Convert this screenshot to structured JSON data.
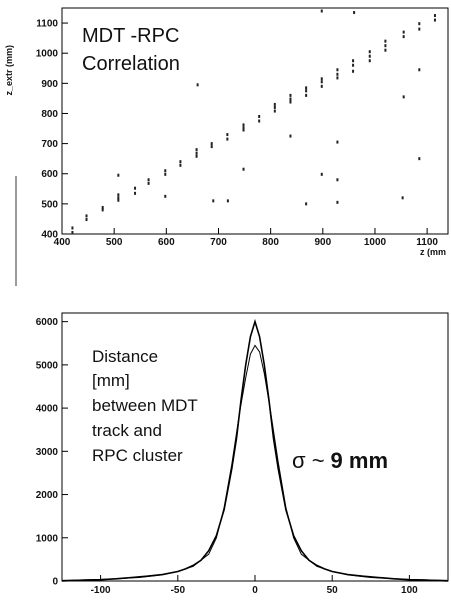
{
  "colors": {
    "ink": "#111111",
    "frame": "#000000",
    "background": "#ffffff",
    "side_bar": "#9a9a9a"
  },
  "chart_data": [
    {
      "type": "scatter",
      "title": "",
      "annotation_lines": [
        "MDT -RPC",
        "Correlation"
      ],
      "xlabel": "z (mm",
      "ylabel": "z_extr (mm)",
      "xlim": [
        400,
        1140
      ],
      "ylim": [
        400,
        1150
      ],
      "xticks": [
        400,
        500,
        600,
        700,
        800,
        900,
        1000,
        1100
      ],
      "yticks": [
        400,
        500,
        600,
        700,
        800,
        900,
        1000,
        1100
      ],
      "x_tick_labels": [
        "400",
        "500",
        "600",
        "700",
        "800",
        "900",
        "1000",
        "1100"
      ],
      "y_tick_labels": [
        "400",
        "500",
        "600",
        "700",
        "800",
        "900",
        "1000",
        "1100"
      ],
      "series": [
        {
          "points": [
            [
              420,
              420
            ],
            [
              420,
              405
            ],
            [
              447,
              448
            ],
            [
              447,
              460
            ],
            [
              478,
              480
            ],
            [
              478,
              488
            ],
            [
              508,
              512
            ],
            [
              508,
              520
            ],
            [
              508,
              530
            ],
            [
              540,
              535
            ],
            [
              540,
              552
            ],
            [
              566,
              568
            ],
            [
              566,
              580
            ],
            [
              598,
              598
            ],
            [
              598,
              610
            ],
            [
              627,
              628
            ],
            [
              627,
              640
            ],
            [
              658,
              658
            ],
            [
              658,
              668
            ],
            [
              658,
              680
            ],
            [
              687,
              690
            ],
            [
              687,
              700
            ],
            [
              717,
              715
            ],
            [
              717,
              730
            ],
            [
              748,
              745
            ],
            [
              748,
              752
            ],
            [
              748,
              762
            ],
            [
              778,
              775
            ],
            [
              778,
              790
            ],
            [
              808,
              808
            ],
            [
              808,
              820
            ],
            [
              808,
              830
            ],
            [
              838,
              838
            ],
            [
              838,
              848
            ],
            [
              838,
              860
            ],
            [
              868,
              860
            ],
            [
              868,
              875
            ],
            [
              868,
              885
            ],
            [
              898,
              890
            ],
            [
              898,
              905
            ],
            [
              898,
              915
            ],
            [
              928,
              918
            ],
            [
              928,
              930
            ],
            [
              928,
              945
            ],
            [
              958,
              940
            ],
            [
              958,
              960
            ],
            [
              958,
              975
            ],
            [
              990,
              975
            ],
            [
              990,
              990
            ],
            [
              990,
              1005
            ],
            [
              1020,
              1010
            ],
            [
              1020,
              1025
            ],
            [
              1020,
              1040
            ],
            [
              1055,
              1055
            ],
            [
              1055,
              1070
            ],
            [
              1085,
              1080
            ],
            [
              1085,
              1098
            ],
            [
              1115,
              1110
            ],
            [
              1115,
              1125
            ],
            [
              898,
              1140
            ],
            [
              960,
              1135
            ],
            [
              690,
              510
            ],
            [
              718,
              510
            ],
            [
              928,
              505
            ],
            [
              1053,
              520
            ],
            [
              898,
              598
            ],
            [
              928,
              580
            ],
            [
              838,
              725
            ],
            [
              928,
              705
            ],
            [
              1085,
              650
            ],
            [
              1055,
              855
            ],
            [
              868,
              500
            ],
            [
              660,
              895
            ],
            [
              1085,
              945
            ],
            [
              598,
              525
            ],
            [
              508,
              595
            ],
            [
              748,
              615
            ]
          ]
        }
      ]
    },
    {
      "type": "line",
      "title": "",
      "annotation_lines": [
        "Distance",
        "[mm]",
        "between MDT",
        "track and",
        "RPC cluster"
      ],
      "annotation_sigma_prefix": "σ ~",
      "annotation_sigma_value": "9 mm",
      "xlabel": "",
      "ylabel": "",
      "xlim": [
        -125,
        125
      ],
      "ylim": [
        0,
        6200
      ],
      "xticks": [
        -100,
        -50,
        0,
        50,
        100
      ],
      "yticks": [
        0,
        1000,
        2000,
        3000,
        4000,
        5000,
        6000
      ],
      "x_tick_labels": [
        "-100",
        "-50",
        "0",
        "50",
        "100"
      ],
      "y_tick_labels": [
        "0",
        "1000",
        "2000",
        "3000",
        "4000",
        "5000",
        "6000"
      ],
      "series": [
        {
          "x": [
            -125,
            -110,
            -100,
            -90,
            -80,
            -70,
            -60,
            -50,
            -45,
            -40,
            -35,
            -30,
            -25,
            -20,
            -15,
            -12,
            -9,
            -6,
            -3,
            0,
            3,
            6,
            9,
            12,
            15,
            20,
            25,
            30,
            35,
            40,
            45,
            50,
            60,
            70,
            80,
            90,
            100,
            110,
            125
          ],
          "y": [
            0,
            20,
            30,
            50,
            80,
            110,
            150,
            220,
            280,
            360,
            480,
            700,
            1050,
            1650,
            2600,
            3300,
            4200,
            5000,
            5650,
            6000,
            5650,
            5000,
            4200,
            3300,
            2600,
            1650,
            1050,
            700,
            480,
            360,
            280,
            220,
            150,
            110,
            80,
            50,
            30,
            20,
            0
          ]
        },
        {
          "x": [
            -125,
            -100,
            -75,
            -60,
            -50,
            -40,
            -30,
            -25,
            -20,
            -15,
            -10,
            -6,
            -3,
            0,
            3,
            6,
            10,
            15,
            20,
            25,
            30,
            40,
            50,
            60,
            75,
            100,
            125
          ],
          "y": [
            15,
            35,
            80,
            140,
            220,
            340,
            620,
            1000,
            1700,
            2700,
            3900,
            4700,
            5250,
            5450,
            5300,
            4800,
            3950,
            2750,
            1700,
            1000,
            620,
            340,
            220,
            140,
            80,
            35,
            15
          ]
        }
      ]
    }
  ]
}
